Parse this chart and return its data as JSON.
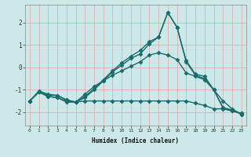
{
  "title": "",
  "xlabel": "Humidex (Indice chaleur)",
  "ylabel": "",
  "bg_color": "#cce8e8",
  "grid_color": "#e0b0b0",
  "line_color": "#1a6b6b",
  "marker": "D",
  "marker_size": 2.5,
  "line_width": 1.0,
  "xlim": [
    -0.5,
    23.5
  ],
  "ylim": [
    -2.6,
    2.8
  ],
  "yticks": [
    -2,
    -1,
    0,
    1,
    2
  ],
  "xticks": [
    0,
    1,
    2,
    3,
    4,
    5,
    6,
    7,
    8,
    9,
    10,
    11,
    12,
    13,
    14,
    15,
    16,
    17,
    18,
    19,
    20,
    21,
    22,
    23
  ],
  "series": [
    {
      "x": [
        0,
        1,
        2,
        3,
        4,
        5,
        6,
        7,
        8,
        9,
        10,
        11,
        12,
        13,
        14,
        15,
        16,
        17,
        18,
        19,
        20,
        21,
        22,
        23
      ],
      "y": [
        -1.5,
        -1.1,
        -1.3,
        -1.35,
        -1.5,
        -1.55,
        -1.35,
        -1.0,
        -0.6,
        -0.2,
        0.1,
        0.4,
        0.6,
        1.05,
        1.35,
        2.45,
        1.8,
        0.3,
        -0.3,
        -0.4,
        -1.0,
        -1.8,
        -1.95,
        -2.05
      ]
    },
    {
      "x": [
        0,
        1,
        2,
        3,
        4,
        5,
        6,
        7,
        8,
        9,
        10,
        11,
        12,
        13,
        14,
        15,
        16,
        17,
        18,
        19,
        20,
        21,
        22,
        23
      ],
      "y": [
        -1.5,
        -1.1,
        -1.25,
        -1.25,
        -1.45,
        -1.55,
        -1.3,
        -0.95,
        -0.55,
        -0.15,
        0.2,
        0.5,
        0.75,
        1.15,
        1.35,
        2.45,
        1.8,
        0.25,
        -0.35,
        -0.5,
        -1.0,
        -1.8,
        -1.9,
        -2.1
      ]
    },
    {
      "x": [
        0,
        1,
        2,
        3,
        4,
        5,
        6,
        7,
        8,
        9,
        10,
        11,
        12,
        13,
        14,
        15,
        16,
        17,
        18,
        19,
        20,
        21,
        22,
        23
      ],
      "y": [
        -1.5,
        -1.1,
        -1.3,
        -1.35,
        -1.55,
        -1.55,
        -1.5,
        -1.5,
        -1.5,
        -1.5,
        -1.5,
        -1.5,
        -1.5,
        -1.5,
        -1.5,
        -1.5,
        -1.5,
        -1.5,
        -1.6,
        -1.7,
        -1.85,
        -1.85,
        -1.95,
        -2.05
      ]
    },
    {
      "x": [
        0,
        1,
        2,
        3,
        4,
        5,
        6,
        7,
        8,
        9,
        10,
        11,
        12,
        13,
        14,
        15,
        16,
        17,
        18,
        19,
        20,
        21,
        22,
        23
      ],
      "y": [
        -1.5,
        -1.05,
        -1.2,
        -1.25,
        -1.45,
        -1.55,
        -1.2,
        -0.85,
        -0.6,
        -0.35,
        -0.15,
        0.05,
        0.25,
        0.55,
        0.65,
        0.55,
        0.35,
        -0.25,
        -0.4,
        -0.55,
        -1.0,
        -1.5,
        -1.85,
        -2.1
      ]
    }
  ]
}
